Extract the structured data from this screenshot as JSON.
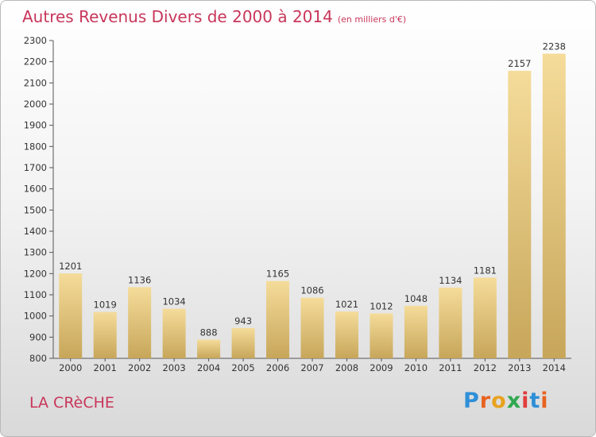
{
  "header": {
    "title": "Autres Revenus Divers de 2000 à 2014",
    "subtitle": "(en milliers d'€)"
  },
  "footer": {
    "commune": "LA CRèCHE",
    "brand": "Proxiti",
    "brand_colors": [
      "#2e8fd8",
      "#e8621f",
      "#e8a21f",
      "#2fa84f",
      "#e23b3b",
      "#2e8fd8",
      "#e8621f"
    ]
  },
  "colors": {
    "bar_light": "#f5dc9a",
    "bar_dark": "#c7a65a",
    "title": "#c8365a"
  },
  "chart_data": {
    "type": "bar",
    "categories": [
      "2000",
      "2001",
      "2002",
      "2003",
      "2004",
      "2005",
      "2006",
      "2007",
      "2008",
      "2009",
      "2010",
      "2011",
      "2012",
      "2013",
      "2014"
    ],
    "values": [
      1201,
      1019,
      1136,
      1034,
      888,
      943,
      1165,
      1086,
      1021,
      1012,
      1048,
      1134,
      1181,
      2157,
      2238
    ],
    "ylim": [
      800,
      2300
    ],
    "yticks": [
      800,
      900,
      1000,
      1100,
      1200,
      1300,
      1400,
      1500,
      1600,
      1700,
      1800,
      1900,
      2000,
      2100,
      2200,
      2300
    ],
    "grid": false,
    "legend": "none"
  }
}
